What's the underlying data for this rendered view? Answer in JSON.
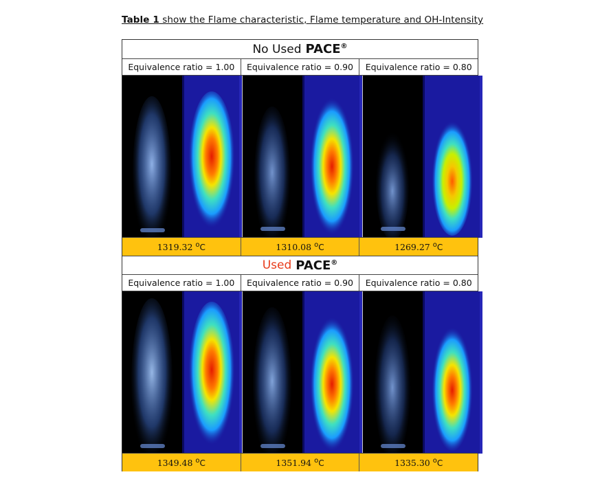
{
  "caption": {
    "bold": "Table 1",
    "text": " show the Flame characteristic, Flame temperature and OH-Intensity"
  },
  "sections": [
    {
      "prefix": "No Used",
      "brand": "PACE",
      "reg": "®",
      "eq_labels": [
        "Equivalence ratio = 1.00",
        "Equivalence ratio = 0.90",
        "Equivalence ratio = 0.80"
      ],
      "temps": [
        "1319.32",
        "1310.08",
        "1269.27"
      ]
    },
    {
      "prefix": "Used",
      "brand": "PACE",
      "reg": "®",
      "eq_labels": [
        "Equivalence ratio = 1.00",
        "Equivalence ratio = 0.90",
        "Equivalence ratio = 0.80"
      ],
      "temps": [
        "1349.48",
        "1351.94",
        "1335.30"
      ]
    }
  ],
  "unit": {
    "deg": "o",
    "c": "C"
  },
  "colors": {
    "temp_row": "#ffc20e",
    "used_label": "#e83b1a",
    "thermal_bg": "#1a1aa0"
  }
}
